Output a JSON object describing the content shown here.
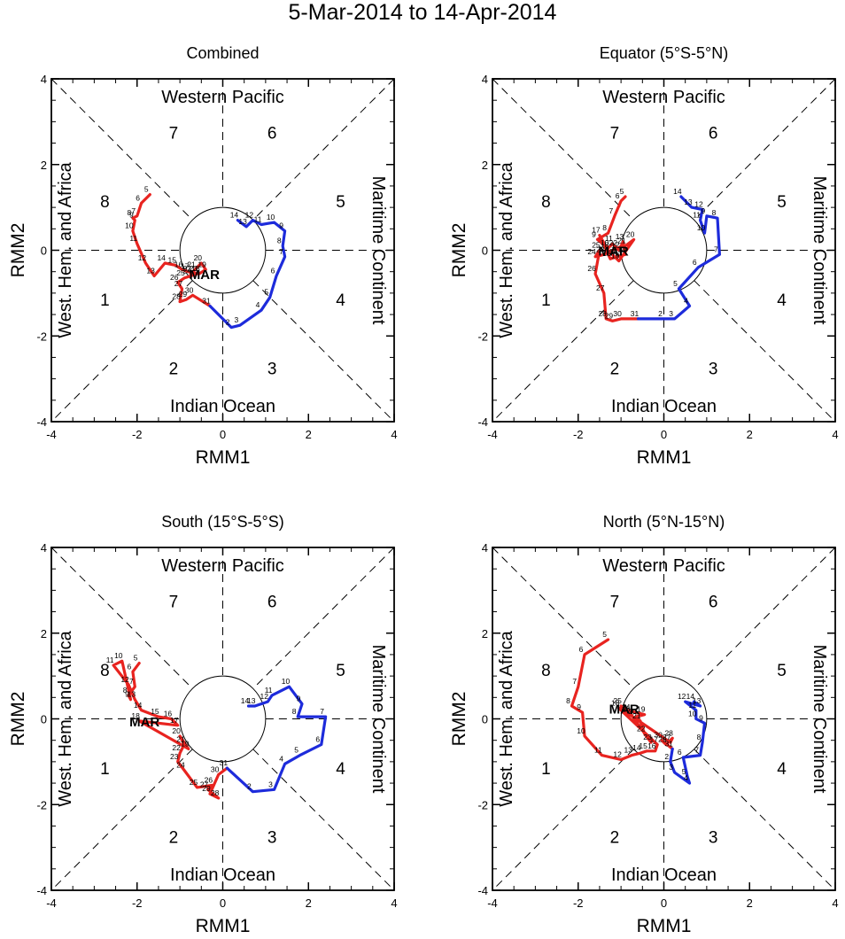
{
  "title": "5-Mar-2014 to 14-Apr-2014",
  "chart_data": [
    {
      "type": "line",
      "title": "Combined",
      "xlabel": "RMM1",
      "ylabel": "RMM2",
      "xlim": [
        -4,
        4
      ],
      "ylim": [
        -4,
        4
      ],
      "ticks": [
        "-4",
        "-2",
        "0",
        "2",
        "4"
      ],
      "region_labels": {
        "top": "Western Pacific",
        "bottom": "Indian Ocean",
        "left": "West. Hem. and Africa",
        "right": "Maritime Continent"
      },
      "phase_labels": [
        "1",
        "2",
        "3",
        "4",
        "5",
        "6",
        "7",
        "8"
      ],
      "series": [
        {
          "name": "March",
          "color": "#e8231f",
          "month_label": "MAR",
          "points": [
            [
              -1.7,
              1.3,
              "5"
            ],
            [
              -1.9,
              1.1,
              "6"
            ],
            [
              -2.0,
              0.8,
              "7"
            ],
            [
              -2.1,
              0.75,
              "8"
            ],
            [
              -2.05,
              0.7,
              "9"
            ],
            [
              -2.1,
              0.45,
              "10"
            ],
            [
              -2.0,
              0.15,
              "11"
            ],
            [
              -1.8,
              -0.3,
              "12"
            ],
            [
              -1.6,
              -0.6,
              "13"
            ],
            [
              -1.35,
              -0.3,
              "14"
            ],
            [
              -1.1,
              -0.35,
              "15"
            ],
            [
              -0.95,
              -0.45,
              "16"
            ],
            [
              -0.8,
              -0.5,
              "17"
            ],
            [
              -0.55,
              -0.55,
              "18"
            ],
            [
              -0.4,
              -0.45,
              "19"
            ],
            [
              -0.5,
              -0.3,
              "20"
            ],
            [
              -0.65,
              -0.45,
              "21"
            ],
            [
              -0.75,
              -0.55,
              "22"
            ],
            [
              -0.6,
              -0.55,
              "23"
            ],
            [
              -0.75,
              -0.6,
              "24"
            ],
            [
              -0.9,
              -0.65,
              "25"
            ],
            [
              -1.05,
              -0.75,
              "26"
            ],
            [
              -0.95,
              -0.9,
              "27"
            ],
            [
              -1.0,
              -1.2,
              "28"
            ],
            [
              -0.85,
              -1.15,
              "29"
            ],
            [
              -0.7,
              -1.05,
              "30"
            ],
            [
              -0.3,
              -1.3,
              "31"
            ]
          ]
        },
        {
          "name": "April",
          "color": "#1d2bdb",
          "points": [
            [
              -0.3,
              -1.3,
              ""
            ],
            [
              0.2,
              -1.8,
              "2"
            ],
            [
              0.4,
              -1.75,
              "3"
            ],
            [
              0.9,
              -1.4,
              "4"
            ],
            [
              1.1,
              -1.1,
              "5"
            ],
            [
              1.25,
              -0.6,
              "6"
            ],
            [
              1.45,
              -0.15,
              "7"
            ],
            [
              1.4,
              0.1,
              "8"
            ],
            [
              1.45,
              0.45,
              "9"
            ],
            [
              1.2,
              0.65,
              "10"
            ],
            [
              0.9,
              0.6,
              "11"
            ],
            [
              0.7,
              0.7,
              "12"
            ],
            [
              0.55,
              0.55,
              "13"
            ],
            [
              0.35,
              0.7,
              "14"
            ]
          ]
        }
      ]
    },
    {
      "type": "line",
      "title": "Equator (5°S-5°N)",
      "xlabel": "RMM1",
      "ylabel": "RMM2",
      "xlim": [
        -4,
        4
      ],
      "ylim": [
        -4,
        4
      ],
      "ticks": [
        "-4",
        "-2",
        "0",
        "2",
        "4"
      ],
      "region_labels": {
        "top": "Western Pacific",
        "bottom": "Indian Ocean",
        "left": "West. Hem. and Africa",
        "right": "Maritime Continent"
      },
      "phase_labels": [
        "1",
        "2",
        "3",
        "4",
        "5",
        "6",
        "7",
        "8"
      ],
      "series": [
        {
          "name": "March",
          "color": "#e8231f",
          "month_label": "MAR",
          "points": [
            [
              -0.9,
              1.25,
              "5"
            ],
            [
              -1.0,
              1.15,
              "6"
            ],
            [
              -1.15,
              0.8,
              "7"
            ],
            [
              -1.3,
              0.4,
              "8"
            ],
            [
              -1.55,
              0.25,
              "9"
            ],
            [
              -1.3,
              0.05,
              "10"
            ],
            [
              -1.2,
              0.15,
              "11"
            ],
            [
              -1.05,
              0.0,
              "12"
            ],
            [
              -0.95,
              0.2,
              "13"
            ],
            [
              -0.9,
              -0.1,
              "14"
            ],
            [
              -1.1,
              -0.15,
              "15"
            ],
            [
              -1.25,
              -0.2,
              "16"
            ],
            [
              -1.5,
              0.35,
              "17"
            ],
            [
              -1.3,
              0.0,
              "18"
            ],
            [
              -1.05,
              -0.25,
              "19"
            ],
            [
              -0.7,
              0.25,
              "20"
            ],
            [
              -0.9,
              0.1,
              "21"
            ],
            [
              -1.1,
              0.05,
              "22"
            ],
            [
              -1.4,
              -0.1,
              "23"
            ],
            [
              -1.6,
              -0.15,
              "24"
            ],
            [
              -1.5,
              0.0,
              "25"
            ],
            [
              -1.6,
              -0.55,
              "26"
            ],
            [
              -1.4,
              -1.0,
              "27"
            ],
            [
              -1.35,
              -1.6,
              "28"
            ],
            [
              -1.2,
              -1.65,
              "29"
            ],
            [
              -1.0,
              -1.6,
              "30"
            ],
            [
              -0.6,
              -1.6,
              "31"
            ]
          ]
        },
        {
          "name": "April",
          "color": "#1d2bdb",
          "points": [
            [
              -0.6,
              -1.6,
              ""
            ],
            [
              0.0,
              -1.6,
              "2"
            ],
            [
              0.25,
              -1.6,
              "3"
            ],
            [
              0.6,
              -1.3,
              "4"
            ],
            [
              0.35,
              -0.9,
              "5"
            ],
            [
              0.8,
              -0.4,
              "6"
            ],
            [
              1.3,
              -0.1,
              "7"
            ],
            [
              1.25,
              0.75,
              "8"
            ],
            [
              1.0,
              0.8,
              "9"
            ],
            [
              0.95,
              0.4,
              "10"
            ],
            [
              0.85,
              0.7,
              "11"
            ],
            [
              0.9,
              0.95,
              "12"
            ],
            [
              0.65,
              1.0,
              "13"
            ],
            [
              0.4,
              1.25,
              "14"
            ]
          ]
        }
      ]
    },
    {
      "type": "line",
      "title": "South (15°S-5°S)",
      "xlabel": "RMM1",
      "ylabel": "RMM2",
      "xlim": [
        -4,
        4
      ],
      "ylim": [
        -4,
        4
      ],
      "ticks": [
        "-4",
        "-2",
        "0",
        "2",
        "4"
      ],
      "region_labels": {
        "top": "Western Pacific",
        "bottom": "Indian Ocean",
        "left": "West. Hem. and Africa",
        "right": "Maritime Continent"
      },
      "phase_labels": [
        "1",
        "2",
        "3",
        "4",
        "5",
        "6",
        "7",
        "8"
      ],
      "series": [
        {
          "name": "March",
          "color": "#e8231f",
          "month_label": "MAR",
          "points": [
            [
              -1.95,
              1.3,
              "5"
            ],
            [
              -2.1,
              1.1,
              "6"
            ],
            [
              -2.05,
              0.75,
              "7"
            ],
            [
              -2.2,
              0.55,
              "8"
            ],
            [
              -2.15,
              0.45,
              "9"
            ],
            [
              -2.35,
              1.35,
              "10"
            ],
            [
              -2.55,
              1.25,
              "11"
            ],
            [
              -2.2,
              0.8,
              "12"
            ],
            [
              -2.05,
              0.45,
              "13"
            ],
            [
              -1.9,
              0.2,
              "14"
            ],
            [
              -1.5,
              0.05,
              "15"
            ],
            [
              -1.2,
              0.0,
              "16"
            ],
            [
              -1.05,
              -0.15,
              "17"
            ],
            [
              -1.95,
              -0.05,
              "18"
            ],
            [
              -0.8,
              -0.7,
              "19"
            ],
            [
              -1.0,
              -0.4,
              "20"
            ],
            [
              -0.9,
              -0.6,
              "21"
            ],
            [
              -1.0,
              -0.8,
              "22"
            ],
            [
              -1.05,
              -1.0,
              "23"
            ],
            [
              -0.9,
              -1.2,
              "24"
            ],
            [
              -0.6,
              -1.6,
              "25"
            ],
            [
              -0.25,
              -1.55,
              "26"
            ],
            [
              -0.35,
              -1.65,
              "27"
            ],
            [
              -0.1,
              -1.85,
              "28"
            ],
            [
              -0.3,
              -1.75,
              "29"
            ],
            [
              -0.1,
              -1.3,
              "30"
            ],
            [
              0.1,
              -1.15,
              "31"
            ]
          ]
        },
        {
          "name": "April",
          "color": "#1d2bdb",
          "points": [
            [
              0.1,
              -1.15,
              ""
            ],
            [
              0.7,
              -1.7,
              "2"
            ],
            [
              1.2,
              -1.65,
              "3"
            ],
            [
              1.45,
              -1.05,
              "4"
            ],
            [
              1.8,
              -0.85,
              "5"
            ],
            [
              2.3,
              -0.6,
              "6"
            ],
            [
              2.4,
              0.05,
              "7"
            ],
            [
              1.75,
              0.05,
              "8"
            ],
            [
              1.85,
              0.35,
              "9"
            ],
            [
              1.55,
              0.75,
              "10"
            ],
            [
              1.15,
              0.55,
              "11"
            ],
            [
              1.05,
              0.4,
              "12"
            ],
            [
              0.75,
              0.3,
              "13"
            ],
            [
              0.6,
              0.3,
              "14"
            ]
          ]
        }
      ]
    },
    {
      "type": "line",
      "title": "North (5°N-15°N)",
      "xlabel": "RMM1",
      "ylabel": "RMM2",
      "xlim": [
        -4,
        4
      ],
      "ylim": [
        -4,
        4
      ],
      "ticks": [
        "-4",
        "-2",
        "0",
        "2",
        "4"
      ],
      "region_labels": {
        "top": "Western Pacific",
        "bottom": "Indian Ocean",
        "left": "West. Hem. and Africa",
        "right": "Maritime Continent"
      },
      "phase_labels": [
        "1",
        "2",
        "3",
        "4",
        "5",
        "6",
        "7",
        "8"
      ],
      "series": [
        {
          "name": "March",
          "color": "#e8231f",
          "month_label": "MAR",
          "points": [
            [
              -1.3,
              1.85,
              "5"
            ],
            [
              -1.85,
              1.5,
              "6"
            ],
            [
              -2.0,
              0.75,
              "7"
            ],
            [
              -2.15,
              0.3,
              "8"
            ],
            [
              -1.9,
              0.15,
              "9"
            ],
            [
              -1.85,
              -0.4,
              "10"
            ],
            [
              -1.45,
              -0.85,
              "11"
            ],
            [
              -1.0,
              -0.95,
              "12"
            ],
            [
              -0.75,
              -0.85,
              "13"
            ],
            [
              -0.55,
              -0.8,
              "14"
            ],
            [
              -0.4,
              -0.75,
              "15"
            ],
            [
              -0.2,
              -0.75,
              "16"
            ],
            [
              -0.15,
              -0.6,
              "17"
            ],
            [
              -1.05,
              0.25,
              "18"
            ],
            [
              -0.45,
              0.1,
              "19"
            ],
            [
              -0.65,
              0.05,
              "20"
            ],
            [
              -0.55,
              -0.05,
              "21"
            ],
            [
              -0.45,
              -0.35,
              "22"
            ],
            [
              -0.3,
              -0.55,
              "23"
            ],
            [
              -0.8,
              0.15,
              "24"
            ],
            [
              -1.0,
              0.3,
              "25"
            ],
            [
              -0.8,
              0.1,
              "26"
            ],
            [
              0.15,
              -0.55,
              "27"
            ],
            [
              0.2,
              -0.45,
              "28"
            ],
            [
              0.05,
              -0.6,
              "29"
            ],
            [
              -0.05,
              -0.5,
              "30"
            ],
            [
              0.2,
              -0.7,
              "31"
            ]
          ]
        },
        {
          "name": "April",
          "color": "#1d2bdb",
          "points": [
            [
              0.2,
              -0.7,
              ""
            ],
            [
              0.15,
              -1.0,
              "2"
            ],
            [
              0.25,
              -1.25,
              "3"
            ],
            [
              0.6,
              -1.5,
              "4"
            ],
            [
              0.55,
              -1.35,
              "5"
            ],
            [
              0.45,
              -0.9,
              "6"
            ],
            [
              0.85,
              -0.85,
              "7"
            ],
            [
              0.9,
              -0.55,
              "8"
            ],
            [
              0.95,
              -0.1,
              "9"
            ],
            [
              0.75,
              0.0,
              "10"
            ],
            [
              0.75,
              0.2,
              "11"
            ],
            [
              0.5,
              0.4,
              "12"
            ],
            [
              0.85,
              0.3,
              "13"
            ],
            [
              0.7,
              0.4,
              "14"
            ]
          ]
        }
      ]
    }
  ]
}
